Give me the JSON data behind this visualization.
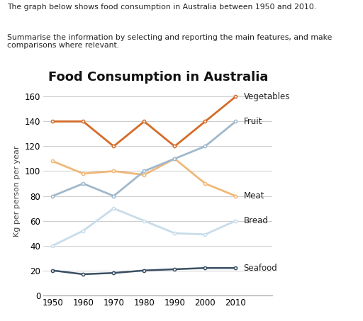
{
  "title": "Food Consumption in Australia",
  "ylabel": "Kg per person per year",
  "years": [
    1950,
    1960,
    1970,
    1980,
    1990,
    2000,
    2010
  ],
  "series": {
    "Vegetables": {
      "values": [
        140,
        140,
        120,
        140,
        120,
        140,
        160
      ],
      "color": "#d46b28",
      "linewidth": 2.0
    },
    "Fruit": {
      "values": [
        108,
        98,
        100,
        97,
        110,
        90,
        80
      ],
      "color": "#f0b878",
      "linewidth": 2.0
    },
    "Meat": {
      "values": [
        80,
        90,
        80,
        100,
        110,
        120,
        140
      ],
      "color": "#a0b8cc",
      "linewidth": 2.0
    },
    "Bread": {
      "values": [
        40,
        52,
        70,
        60,
        50,
        49,
        60
      ],
      "color": "#c8dcea",
      "linewidth": 2.0
    },
    "Seafood": {
      "values": [
        20,
        17,
        18,
        20,
        21,
        22,
        22
      ],
      "color": "#3a4f63",
      "linewidth": 1.8
    }
  },
  "label_offsets": {
    "Vegetables": 160,
    "Fruit": 140,
    "Meat": 80,
    "Bread": 60,
    "Seafood": 22
  },
  "xlim": [
    1947,
    2022
  ],
  "ylim": [
    0,
    168
  ],
  "yticks": [
    0,
    20,
    40,
    60,
    80,
    100,
    120,
    140,
    160
  ],
  "xticks": [
    1950,
    1960,
    1970,
    1980,
    1990,
    2000,
    2010
  ],
  "grid_color": "#cccccc",
  "title_fontsize": 13,
  "axis_label_fontsize": 8,
  "tick_fontsize": 8.5,
  "annotation_fontsize": 8.5,
  "header_text1": "The graph below shows food consumption in Australia between 1950 and 2010.",
  "header_text2": "Summarise the information by selecting and reporting the main features, and make comparisons where relevant."
}
